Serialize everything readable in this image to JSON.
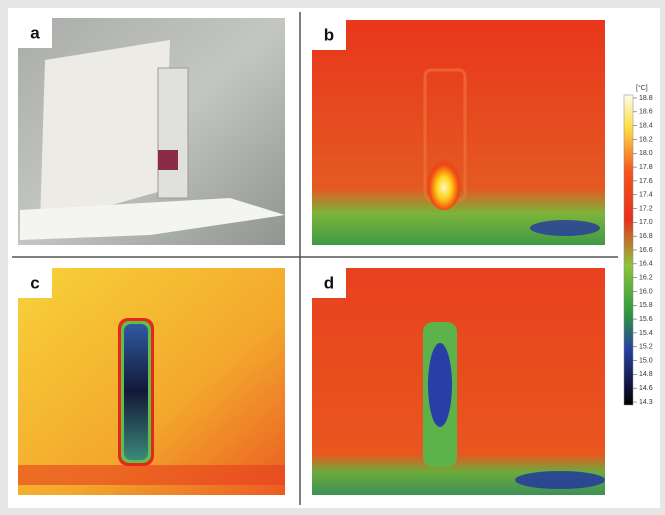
{
  "panels": [
    {
      "label": "a"
    },
    {
      "label": "b"
    },
    {
      "label": "c"
    },
    {
      "label": "d"
    }
  ],
  "colorbar": {
    "unit": "[°C]",
    "ticks": [
      "18.8",
      "18.6",
      "18.4",
      "18.2",
      "18.0",
      "17.8",
      "17.6",
      "17.4",
      "17.2",
      "17.0",
      "16.8",
      "16.6",
      "16.4",
      "16.2",
      "16.0",
      "15.8",
      "15.6",
      "15.4",
      "15.2",
      "15.0",
      "14.8",
      "14.6",
      "14.3"
    ]
  }
}
